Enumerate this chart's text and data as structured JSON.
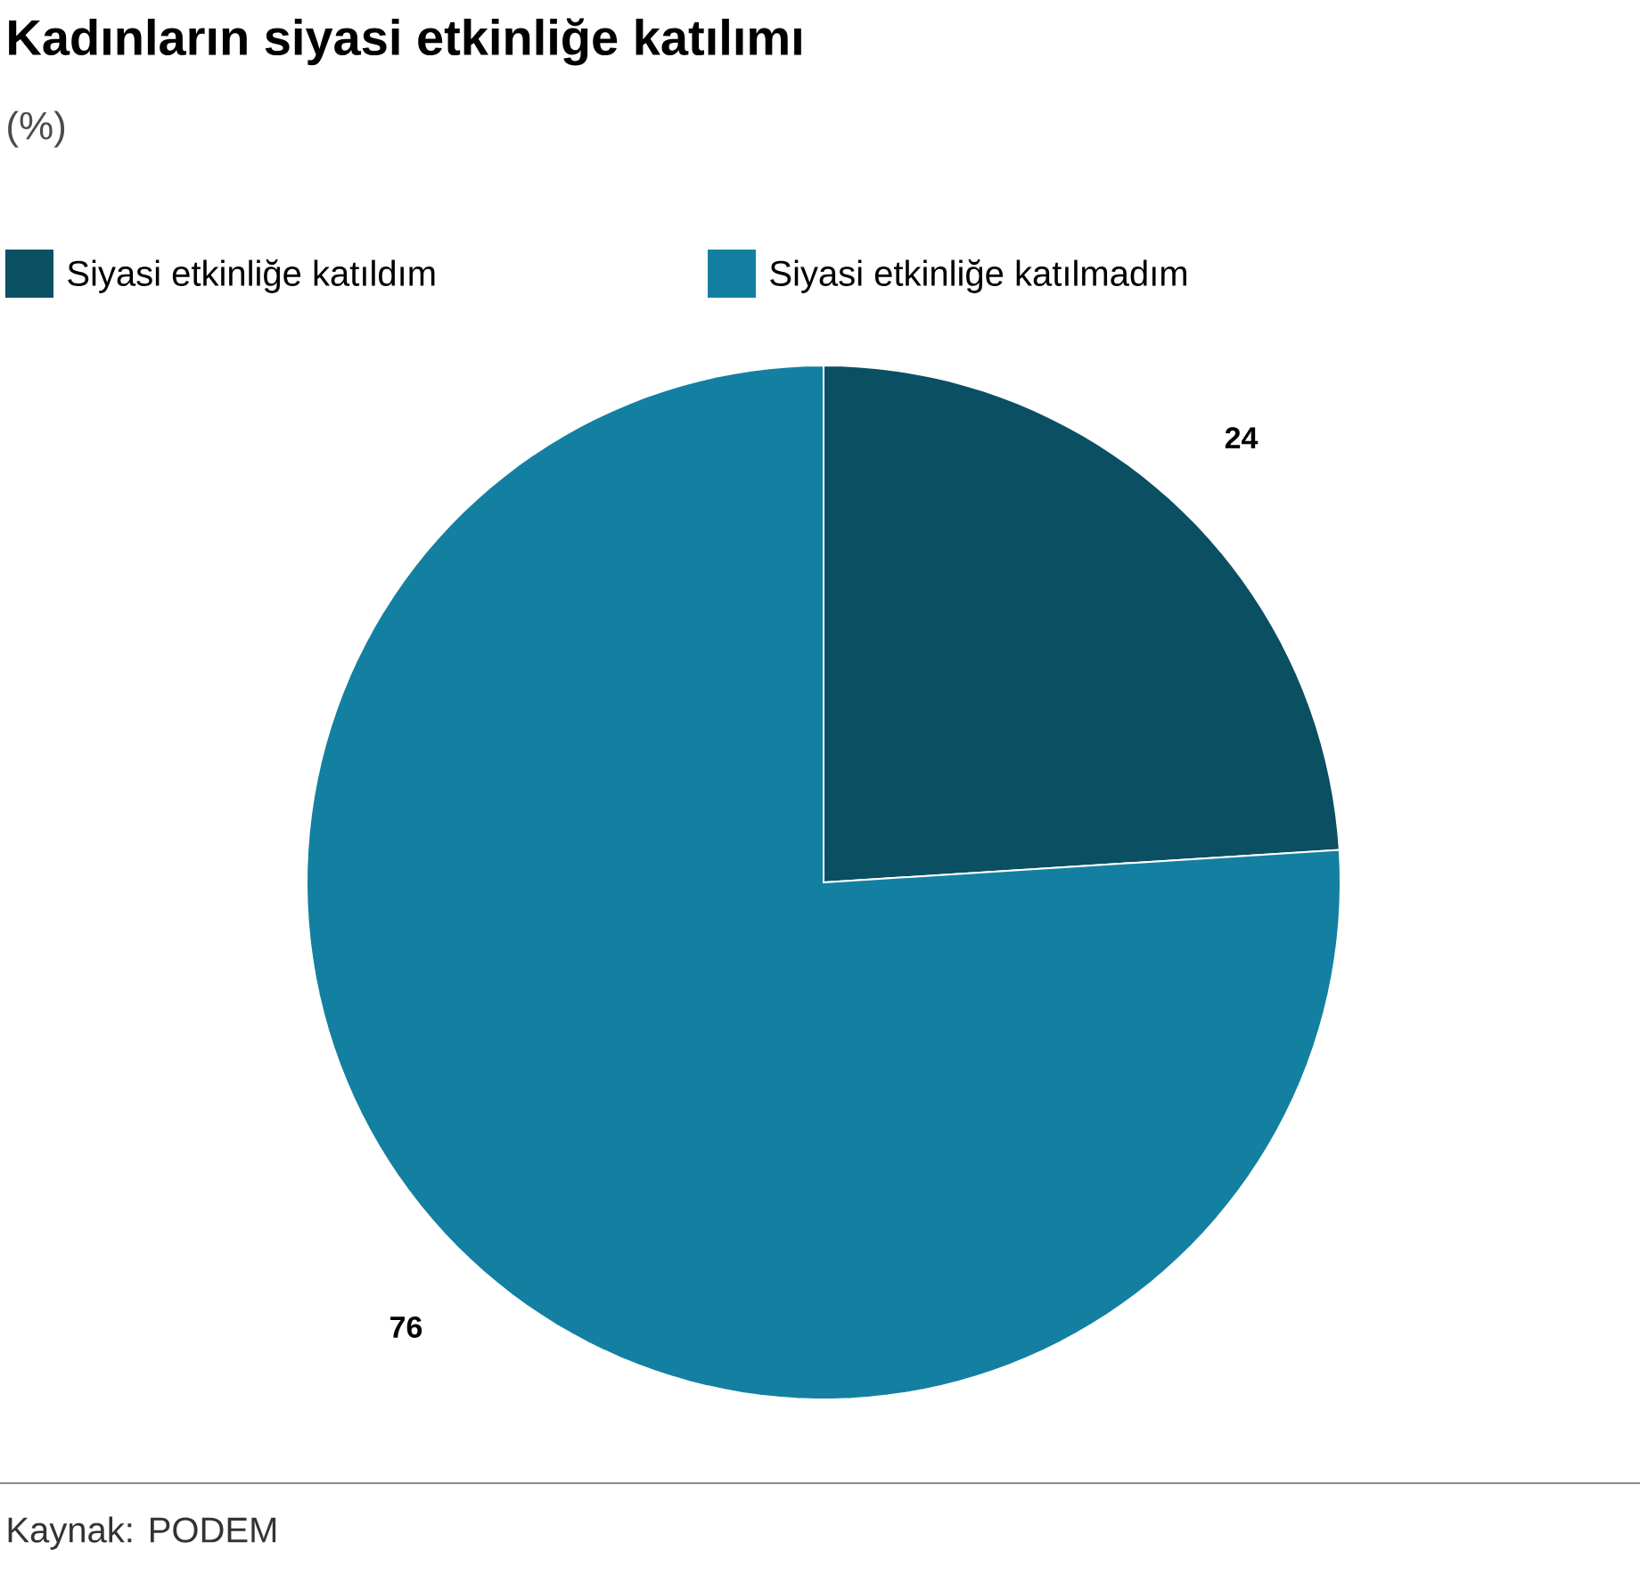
{
  "chart_data": {
    "type": "pie",
    "title": "Kadınların siyasi etkinliğe katılımı",
    "subtitle": "(%)",
    "categories": [
      "Siyasi etkinliğe katıldım",
      "Siyasi etkinliğe katılmadım"
    ],
    "values": [
      24,
      76
    ],
    "colors": [
      "#0b4f63",
      "#1380a1"
    ],
    "data_labels": true,
    "legend": "top left",
    "annotations": [
      "Kaynak: PODEM"
    ]
  }
}
